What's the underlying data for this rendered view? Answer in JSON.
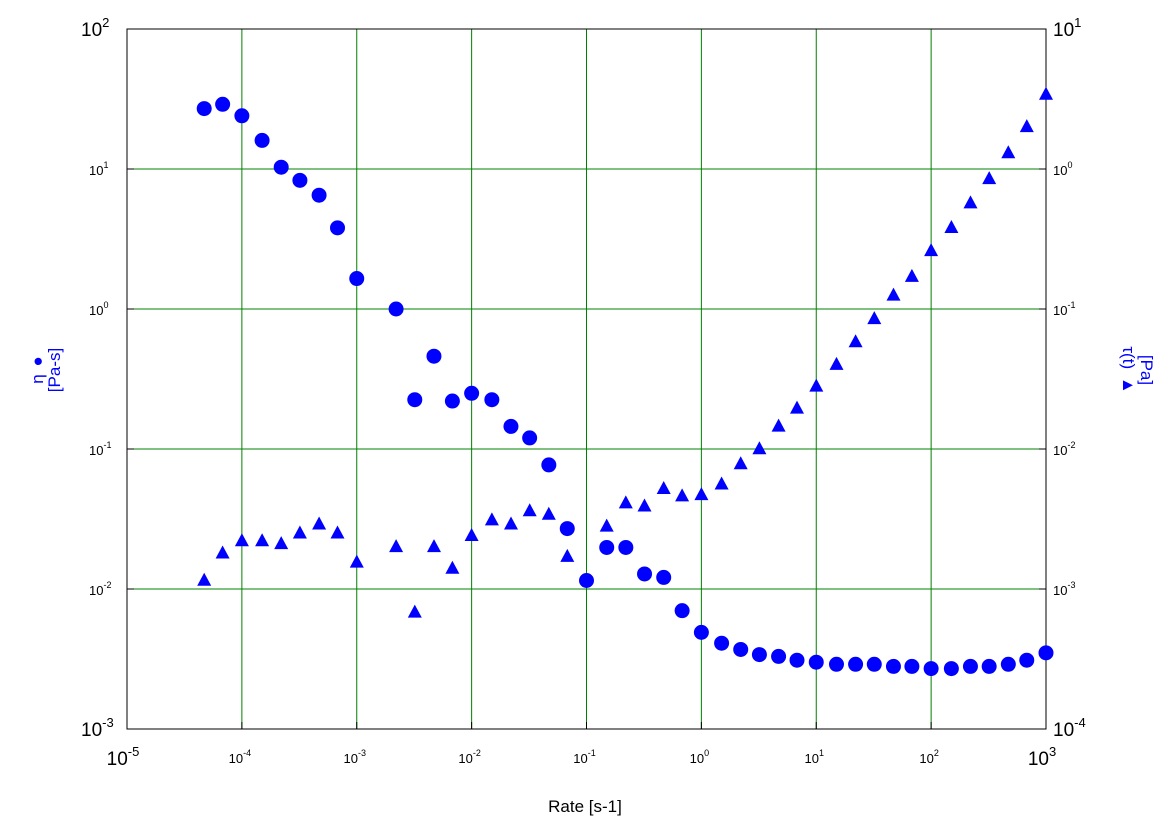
{
  "chart_data": {
    "type": "scatter",
    "xlabel": "Rate [s-1]",
    "x_scale": "log",
    "y_scale": "log",
    "y2_scale": "log",
    "xlim": [
      1e-05,
      1000
    ],
    "ylim": [
      0.001,
      100
    ],
    "y2lim": [
      0.0001,
      10
    ],
    "grid": true,
    "grid_color": "#008000",
    "marker_color": "#0000ff",
    "x_ticks": [
      {
        "base": "10",
        "exp": "-5"
      },
      {
        "base": "10",
        "exp": "-4"
      },
      {
        "base": "10",
        "exp": "-3"
      },
      {
        "base": "10",
        "exp": "-2"
      },
      {
        "base": "10",
        "exp": "-1"
      },
      {
        "base": "10",
        "exp": "0"
      },
      {
        "base": "10",
        "exp": "1"
      },
      {
        "base": "10",
        "exp": "2"
      },
      {
        "base": "10",
        "exp": "3"
      }
    ],
    "y_ticks": [
      {
        "base": "10",
        "exp": "-3"
      },
      {
        "base": "10",
        "exp": "-2"
      },
      {
        "base": "10",
        "exp": "-1"
      },
      {
        "base": "10",
        "exp": "0"
      },
      {
        "base": "10",
        "exp": "1"
      },
      {
        "base": "10",
        "exp": "2"
      }
    ],
    "y2_ticks": [
      {
        "base": "10",
        "exp": "-4"
      },
      {
        "base": "10",
        "exp": "-3"
      },
      {
        "base": "10",
        "exp": "-2"
      },
      {
        "base": "10",
        "exp": "-1"
      },
      {
        "base": "10",
        "exp": "0"
      },
      {
        "base": "10",
        "exp": "1"
      }
    ],
    "y_label": {
      "symbol": "η",
      "marker": "●",
      "unit": "[Pa-s]"
    },
    "y2_label": {
      "symbol": "τ(t)",
      "marker": "▲",
      "unit": "[Pa]"
    },
    "series": [
      {
        "axis": "left",
        "marker": "circle",
        "x": [
          4.7e-05,
          6.8e-05,
          0.0001,
          0.00015,
          0.00022,
          0.00032,
          0.00047,
          0.00068,
          0.001,
          0.0022,
          0.0032,
          0.0047,
          0.0068,
          0.01,
          0.015,
          0.022,
          0.032,
          0.047,
          0.068,
          0.1,
          0.15,
          0.22,
          0.32,
          0.47,
          0.68,
          1.0,
          1.5,
          2.2,
          3.2,
          4.7,
          6.8,
          10,
          15,
          22,
          32,
          47,
          68,
          100,
          150,
          220,
          320,
          470,
          680,
          1000
        ],
        "y": [
          27,
          29,
          24,
          16,
          10.3,
          8.3,
          6.5,
          3.8,
          1.65,
          1.0,
          0.225,
          0.46,
          0.22,
          0.25,
          0.225,
          0.145,
          0.12,
          0.077,
          0.027,
          0.0115,
          0.0198,
          0.0198,
          0.0128,
          0.0121,
          0.007,
          0.0049,
          0.0041,
          0.0037,
          0.0034,
          0.0033,
          0.0031,
          0.003,
          0.0029,
          0.0029,
          0.0029,
          0.0028,
          0.0028,
          0.0027,
          0.0027,
          0.0028,
          0.0028,
          0.0029,
          0.0031,
          0.0035
        ]
      },
      {
        "axis": "right",
        "marker": "triangle",
        "x": [
          4.7e-05,
          6.8e-05,
          0.0001,
          0.00015,
          0.00022,
          0.00032,
          0.00047,
          0.00068,
          0.001,
          0.0022,
          0.0032,
          0.0047,
          0.0068,
          0.01,
          0.015,
          0.022,
          0.032,
          0.047,
          0.068,
          0.15,
          0.22,
          0.32,
          0.47,
          0.68,
          1.0,
          1.5,
          2.2,
          3.2,
          4.7,
          6.8,
          10,
          15,
          22,
          32,
          47,
          68,
          100,
          150,
          220,
          320,
          470,
          680,
          1000
        ],
        "y": [
          0.00115,
          0.0018,
          0.0022,
          0.0022,
          0.0021,
          0.0025,
          0.0029,
          0.0025,
          0.00155,
          0.002,
          0.00068,
          0.002,
          0.0014,
          0.0024,
          0.0031,
          0.0029,
          0.0036,
          0.0034,
          0.0017,
          0.0028,
          0.0041,
          0.0039,
          0.0052,
          0.0046,
          0.0047,
          0.0056,
          0.0078,
          0.01,
          0.0145,
          0.0195,
          0.028,
          0.04,
          0.058,
          0.085,
          0.125,
          0.17,
          0.26,
          0.38,
          0.57,
          0.85,
          1.3,
          2.0,
          3.4
        ]
      }
    ]
  }
}
